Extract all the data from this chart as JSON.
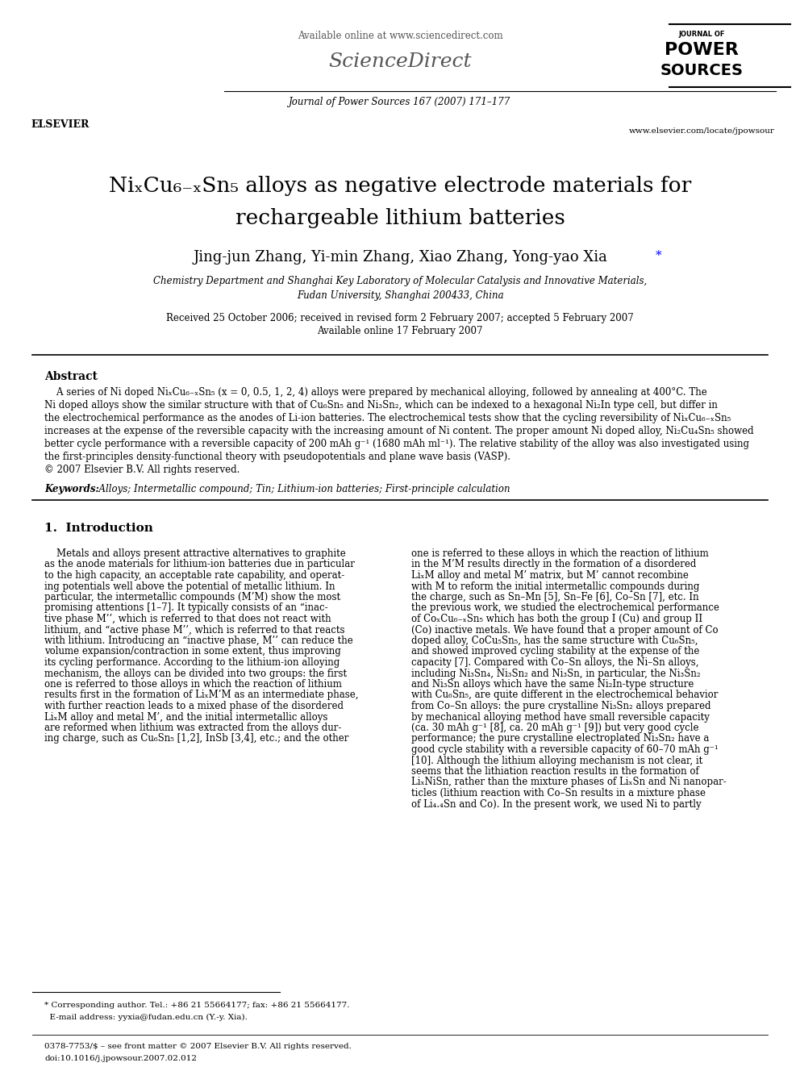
{
  "bg_color": "#ffffff",
  "header": {
    "available_online": "Available online at www.sciencedirect.com",
    "journal_info": "Journal of Power Sources 167 (2007) 171–177",
    "website": "www.elsevier.com/locate/jpowsour"
  },
  "title_line1": "Ni",
  "title_sub_x": "x",
  "title_line1b": "Cu",
  "title_sub_6mx": "6−x",
  "title_line1c": "Sn",
  "title_sub_5": "5",
  "title_line1d": " alloys as negative electrode materials for",
  "title_line2": "rechargeable lithium batteries",
  "authors": "Jing-jun Zhang, Yi-min Zhang, Xiao Zhang, Yong-yao Xia",
  "author_star": "*",
  "affiliation1": "Chemistry Department and Shanghai Key Laboratory of Molecular Catalysis and Innovative Materials,",
  "affiliation2": "Fudan University, Shanghai 200433, China",
  "received": "Received 25 October 2006; received in revised form 2 February 2007; accepted 5 February 2007",
  "available": "Available online 17 February 2007",
  "abstract_heading": "Abstract",
  "abstract_text": "A series of Ni doped NiₓCu₆₋ₓSn₅ (x = 0, 0.5, 1, 2, 4) alloys were prepared by mechanical alloying, followed by annealing at 400°C. The\nNi doped alloys show the similar structure with that of Cu₆Sn₅ and Ni₃Sn₂, which can be indexed to a hexagonal Ni₂In type cell, but differ in\nthe electrochemical performance as the anodes of Li-ion batteries. The electrochemical tests show that the cycling reversibility of NiₓCu₆₋ₓSn₅\nincreases at the expense of the reversible capacity with the increasing amount of Ni content. The proper amount Ni doped alloy, Ni₂Cu₄Sn₅ showed\nbetter cycle performance with a reversible capacity of 200 mAh g⁻¹ (1680 mAh ml⁻¹). The relative stability of the alloy was also investigated using\nthe first-principles density-functional theory with pseudopotentials and plane wave basis (VASP).\n© 2007 Elsevier B.V. All rights reserved.",
  "keywords_label": "Keywords:",
  "keywords_text": "  Alloys; Intermetallic compound; Tin; Lithium-ion batteries; First-principle calculation",
  "section1_heading": "1.  Introduction",
  "col1_para1": "    Metals and alloys present attractive alternatives to graphite\nas the anode materials for lithium-ion batteries due in particular\nto the high capacity, an acceptable rate capability, and operat-\ning potentials well above the potential of metallic lithium. In\nparticular, the intermetallic compounds (M’M) show the most\npromising attentions [1–7]. It typically consists of an “inac-\ntive phase M’’, which is referred to that does not react with\nlithium, and “active phase M’’, which is referred to that reacts\nwith lithium. Introducing an “inactive phase, M’’ can reduce the\nvolume expansion/contraction in some extent, thus improving\nits cycling performance. According to the lithium-ion alloying\nmechanism, the alloys can be divided into two groups: the first\none is referred to those alloys in which the reaction of lithium\nresults first in the formation of LiₓM’M as an intermediate phase,\nwith further reaction leads to a mixed phase of the disordered\nLiₓM alloy and metal M’, and the initial intermetallic alloys\nare reformed when lithium was extracted from the alloys dur-\ning charge, such as Cu₆Sn₅ [1,2], InSb [3,4], etc.; and the other",
  "col2_para1": "one is referred to these alloys in which the reaction of lithium\nin the M’M results directly in the formation of a disordered\nLiₓM alloy and metal M’ matrix, but M’ cannot recombine\nwith M to reform the initial intermetallic compounds during\nthe charge, such as Sn–Mn [5], Sn–Fe [6], Co–Sn [7], etc. In\nthe previous work, we studied the electrochemical performance\nof CoₓCu₆₋ₓSn₅ which has both the group I (Cu) and group II\n(Co) inactive metals. We have found that a proper amount of Co\ndoped alloy, CoCu₅Sn₅, has the same structure with Cu₆Sn₅,\nand showed improved cycling stability at the expense of the\ncapacity [7]. Compared with Co–Sn alloys, the Ni–Sn alloys,\nincluding Ni₃Sn₄, Ni₃Sn₂ and Ni₃Sn, in particular, the Ni₃Sn₂\nand Ni₃Sn alloys which have the same Ni₂In-type structure\nwith Cu₆Sn₅, are quite different in the electrochemical behavior\nfrom Co–Sn alloys: the pure crystalline Ni₃Sn₂ alloys prepared\nby mechanical alloying method have small reversible capacity\n(ca. 30 mAh g⁻¹ [8], ca. 20 mAh g⁻¹ [9]) but very good cycle\nperformance; the pure crystalline electroplated Ni₃Sn₂ have a\ngood cycle stability with a reversible capacity of 60–70 mAh g⁻¹\n[10]. Although the lithium alloying mechanism is not clear, it\nseems that the lithiation reaction results in the formation of\nLiₓNiSn, rather than the mixture phases of LiₓSn and Ni nanopar-\nticles (lithium reaction with Co–Sn results in a mixture phase\nof Li₄.₄Sn and Co). In the present work, we used Ni to partly",
  "footnote": "* Corresponding author. Tel.: +86 21 55664177; fax: +86 21 55664177.\n  E-mail address: yyxia@fudan.edu.cn (Y.-y. Xia).",
  "footer1": "0378-7753/$ – see front matter © 2007 Elsevier B.V. All rights reserved.",
  "footer2": "doi:10.1016/j.jpowsour.2007.02.012"
}
